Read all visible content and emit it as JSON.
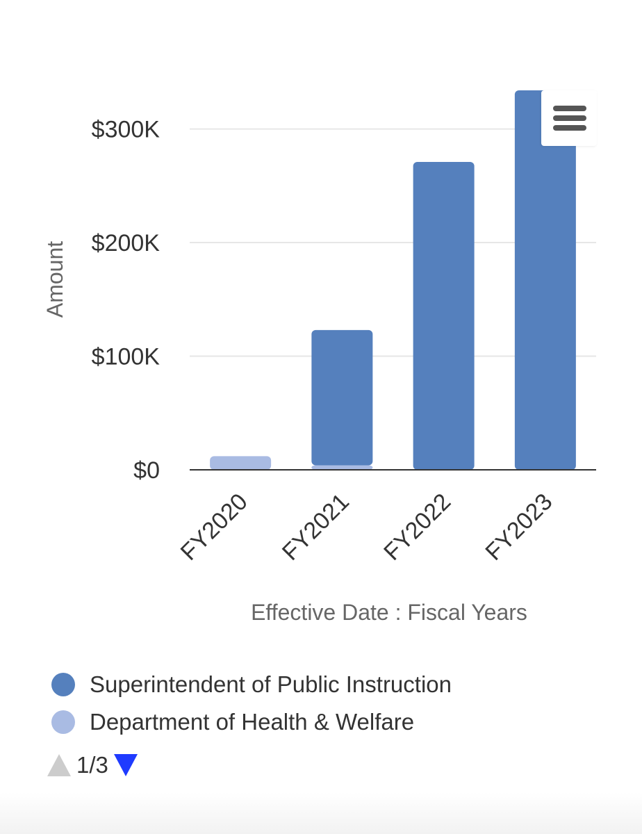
{
  "chart_data": {
    "type": "bar",
    "stacked": true,
    "categories": [
      "FY2020",
      "FY2021",
      "FY2022",
      "FY2023"
    ],
    "series": [
      {
        "name": "Superintendent of Public Instruction",
        "color": "#5580bd",
        "values": [
          0,
          119000,
          271000,
          334000
        ]
      },
      {
        "name": "Department of Health & Welfare",
        "color": "#a9bbe3",
        "values": [
          12000,
          4000,
          0,
          0
        ]
      }
    ],
    "xlabel": "Effective Date : Fiscal Years",
    "ylabel": "Amount",
    "yticks": [
      0,
      100000,
      200000,
      300000
    ],
    "ytick_labels": [
      "$0",
      "$100K",
      "$200K",
      "$300K"
    ],
    "ylim": [
      0,
      334000
    ],
    "grid": true,
    "legend": "bottom-left"
  },
  "menu": {
    "icon": "hamburger-icon"
  },
  "pager": {
    "text": "1/3"
  }
}
